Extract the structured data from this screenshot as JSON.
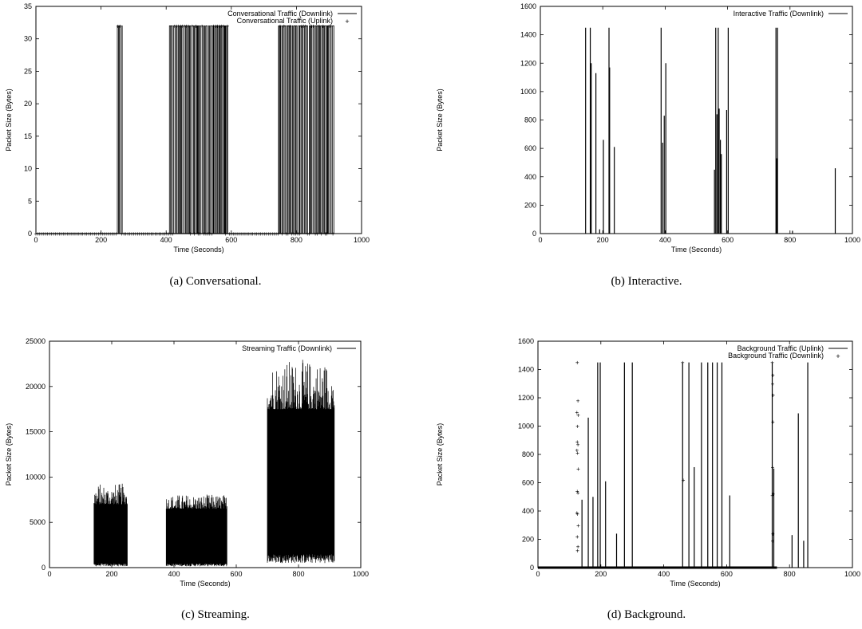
{
  "chart_data": [
    {
      "id": "a",
      "type": "line",
      "caption": "(a) Conversational.",
      "xlabel": "Time (Seconds)",
      "ylabel": "Packet Size (Bytes)",
      "xlim": [
        0,
        1000
      ],
      "ylim": [
        0,
        35
      ],
      "xticks": [
        0,
        200,
        400,
        600,
        800,
        1000
      ],
      "yticks": [
        0,
        5,
        10,
        15,
        20,
        25,
        30,
        35
      ],
      "legend_position": "top-right",
      "series": [
        {
          "name": "Conversational Traffic (Downlink)",
          "style": "line",
          "baseline": 0,
          "peak": 32,
          "active_intervals": [
            [
              250,
              265
            ],
            [
              410,
              590
            ],
            [
              745,
              915
            ]
          ]
        },
        {
          "name": "Conversational Traffic (Uplink)",
          "style": "points",
          "baseline": 0,
          "peak": 32,
          "active_intervals": [
            [
              250,
              265
            ],
            [
              410,
              590
            ],
            [
              745,
              915
            ]
          ]
        }
      ]
    },
    {
      "id": "b",
      "type": "line",
      "caption": "(b) Interactive.",
      "xlabel": "Time (Seconds)",
      "ylabel": "Packet Size (Bytes)",
      "xlim": [
        0,
        1000
      ],
      "ylim": [
        0,
        1600
      ],
      "xticks": [
        0,
        200,
        400,
        600,
        800,
        1000
      ],
      "yticks": [
        0,
        200,
        400,
        600,
        800,
        1000,
        1200,
        1400,
        1600
      ],
      "legend_position": "top-right",
      "series": [
        {
          "name": "Interactive Traffic (Downlink)",
          "style": "spikes",
          "points": [
            [
              145,
              1450
            ],
            [
              160,
              1450
            ],
            [
              163,
              1200
            ],
            [
              178,
              1130
            ],
            [
              190,
              30
            ],
            [
              202,
              660
            ],
            [
              220,
              1450
            ],
            [
              222,
              1170
            ],
            [
              237,
              610
            ],
            [
              387,
              1450
            ],
            [
              392,
              640
            ],
            [
              397,
              830
            ],
            [
              402,
              1200
            ],
            [
              558,
              450
            ],
            [
              562,
              1450
            ],
            [
              566,
              840
            ],
            [
              570,
              1450
            ],
            [
              573,
              880
            ],
            [
              577,
              660
            ],
            [
              580,
              560
            ],
            [
              597,
              870
            ],
            [
              602,
              1450
            ],
            [
              755,
              1450
            ],
            [
              757,
              530
            ],
            [
              760,
              1450
            ],
            [
              808,
              20
            ],
            [
              945,
              460
            ]
          ]
        }
      ]
    },
    {
      "id": "c",
      "type": "line",
      "caption": "(c) Streaming.",
      "xlabel": "Time (Seconds)",
      "ylabel": "Packet Size (Bytes)",
      "xlim": [
        0,
        1000
      ],
      "ylim": [
        0,
        25000
      ],
      "xticks": [
        0,
        200,
        400,
        600,
        800,
        1000
      ],
      "yticks": [
        0,
        5000,
        10000,
        15000,
        20000,
        25000
      ],
      "legend_position": "top-right",
      "series": [
        {
          "name": "Streaming Traffic (Downlink)",
          "style": "dense-band",
          "segments": [
            {
              "x": [
                143,
                250
              ],
              "low": 300,
              "high": 7000,
              "max": 9300
            },
            {
              "x": [
                375,
                570
              ],
              "low": 300,
              "high": 6500,
              "max": 8100
            },
            {
              "x": [
                700,
                915
              ],
              "low": 1000,
              "high": 17500,
              "max": 23000
            }
          ]
        }
      ]
    },
    {
      "id": "d",
      "type": "line",
      "caption": "(d) Background.",
      "xlabel": "Time (Seconds)",
      "ylabel": "Packet Size (Bytes)",
      "xlim": [
        0,
        1000
      ],
      "ylim": [
        0,
        1600
      ],
      "xticks": [
        0,
        200,
        400,
        600,
        800,
        1000
      ],
      "yticks": [
        0,
        200,
        400,
        600,
        800,
        1000,
        1200,
        1400,
        1600
      ],
      "legend_position": "top-right",
      "series": [
        {
          "name": "Background Traffic (Uplink)",
          "style": "spikes",
          "points": [
            [
              140,
              480
            ],
            [
              160,
              1060
            ],
            [
              175,
              500
            ],
            [
              190,
              1450
            ],
            [
              198,
              1450
            ],
            [
              215,
              610
            ],
            [
              250,
              240
            ],
            [
              275,
              1450
            ],
            [
              300,
              1450
            ],
            [
              460,
              1450
            ],
            [
              480,
              1450
            ],
            [
              497,
              710
            ],
            [
              520,
              1450
            ],
            [
              540,
              1450
            ],
            [
              555,
              1450
            ],
            [
              570,
              1450
            ],
            [
              585,
              1450
            ],
            [
              610,
              510
            ],
            [
              745,
              1450
            ],
            [
              750,
              700
            ],
            [
              808,
              230
            ],
            [
              828,
              1090
            ],
            [
              845,
              190
            ],
            [
              858,
              1450
            ]
          ]
        },
        {
          "name": "Background Traffic (Downlink)",
          "style": "points",
          "points": [
            [
              125,
              1450
            ],
            [
              127,
              1180
            ],
            [
              124,
              1100
            ],
            [
              128,
              1080
            ],
            [
              126,
              1000
            ],
            [
              125,
              890
            ],
            [
              127,
              870
            ],
            [
              124,
              830
            ],
            [
              126,
              810
            ],
            [
              128,
              700
            ],
            [
              125,
              540
            ],
            [
              127,
              530
            ],
            [
              124,
              390
            ],
            [
              126,
              380
            ],
            [
              128,
              300
            ],
            [
              125,
              220
            ],
            [
              127,
              150
            ],
            [
              126,
              120
            ],
            [
              460,
              1450
            ],
            [
              462,
              620
            ],
            [
              745,
              1450
            ],
            [
              747,
              1360
            ],
            [
              746,
              1300
            ],
            [
              748,
              1220
            ],
            [
              747,
              1030
            ],
            [
              746,
              710
            ],
            [
              748,
              520
            ],
            [
              745,
              510
            ],
            [
              747,
              240
            ],
            [
              746,
              190
            ]
          ]
        }
      ]
    }
  ]
}
